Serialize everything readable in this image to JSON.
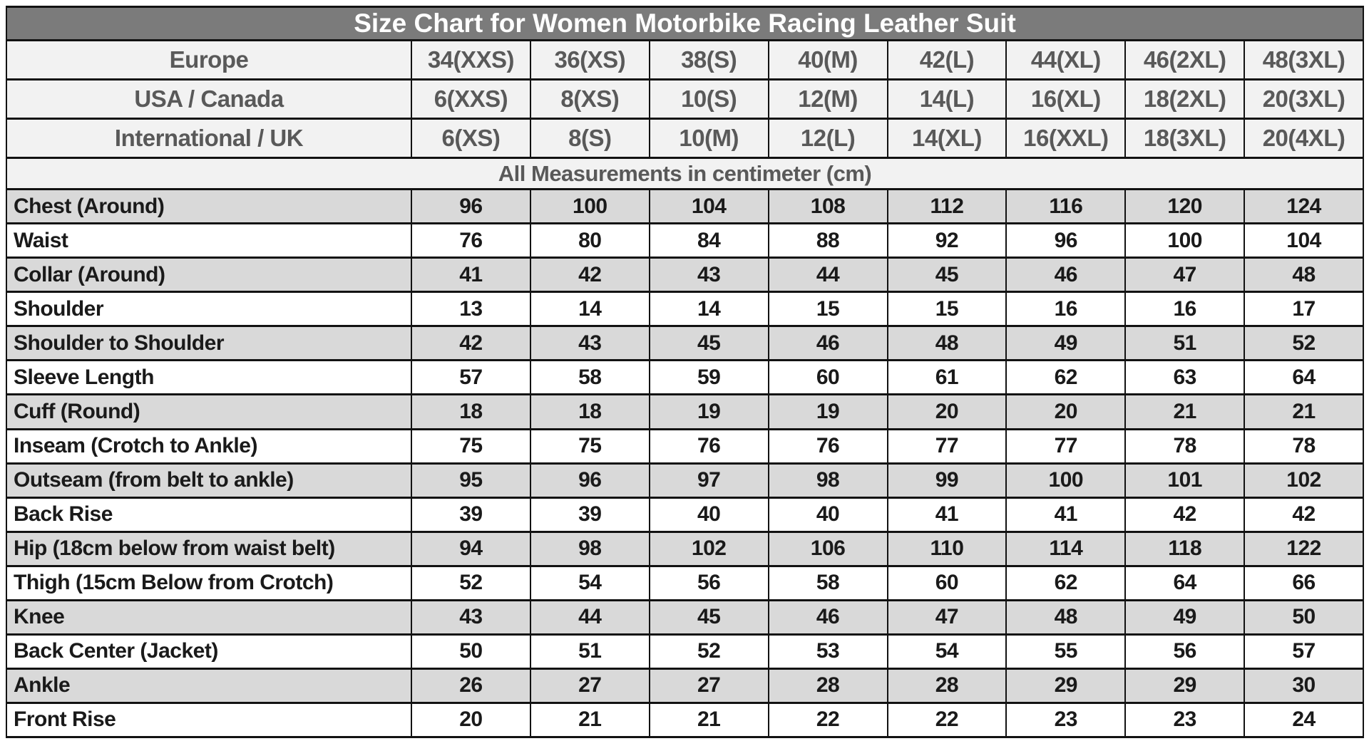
{
  "colors": {
    "title_bar_bg": "#7b7b7b",
    "title_text": "#ffffff",
    "header_bg": "#f2f2f2",
    "header_text": "#595959",
    "row_shade_bg": "#d9d9d9",
    "row_plain_bg": "#ffffff",
    "body_text": "#1a1a1a",
    "border": "#121212"
  },
  "chart_data": {
    "type": "table",
    "title": "Size Chart for Women Motorbike Racing Leather Suit",
    "units_note": "All Measurements in centimeter (cm)",
    "size_conversion_rows": [
      {
        "label": "Europe",
        "values": [
          "34(XXS)",
          "36(XS)",
          "38(S)",
          "40(M)",
          "42(L)",
          "44(XL)",
          "46(2XL)",
          "48(3XL)"
        ]
      },
      {
        "label": "USA / Canada",
        "values": [
          "6(XXS)",
          "8(XS)",
          "10(S)",
          "12(M)",
          "14(L)",
          "16(XL)",
          "18(2XL)",
          "20(3XL)"
        ]
      },
      {
        "label": "International / UK",
        "values": [
          "6(XS)",
          "8(S)",
          "10(M)",
          "12(L)",
          "14(XL)",
          "16(XXL)",
          "18(3XL)",
          "20(4XL)"
        ]
      }
    ],
    "measurements": [
      {
        "label": "Chest (Around)",
        "values": [
          96,
          100,
          104,
          108,
          112,
          116,
          120,
          124
        ]
      },
      {
        "label": "Waist",
        "values": [
          76,
          80,
          84,
          88,
          92,
          96,
          100,
          104
        ]
      },
      {
        "label": "Collar (Around)",
        "values": [
          41,
          42,
          43,
          44,
          45,
          46,
          47,
          48
        ]
      },
      {
        "label": "Shoulder",
        "values": [
          13,
          14,
          14,
          15,
          15,
          16,
          16,
          17
        ]
      },
      {
        "label": "Shoulder to Shoulder",
        "values": [
          42,
          43,
          45,
          46,
          48,
          49,
          51,
          52
        ]
      },
      {
        "label": "Sleeve Length",
        "values": [
          57,
          58,
          59,
          60,
          61,
          62,
          63,
          64
        ]
      },
      {
        "label": "Cuff (Round)",
        "values": [
          18,
          18,
          19,
          19,
          20,
          20,
          21,
          21
        ]
      },
      {
        "label": "Inseam (Crotch to Ankle)",
        "values": [
          75,
          75,
          76,
          76,
          77,
          77,
          78,
          78
        ]
      },
      {
        "label": "Outseam (from belt to ankle)",
        "values": [
          95,
          96,
          97,
          98,
          99,
          100,
          101,
          102
        ]
      },
      {
        "label": "Back Rise",
        "values": [
          39,
          39,
          40,
          40,
          41,
          41,
          42,
          42
        ]
      },
      {
        "label": "Hip (18cm below from waist belt)",
        "values": [
          94,
          98,
          102,
          106,
          110,
          114,
          118,
          122
        ]
      },
      {
        "label": "Thigh (15cm Below from Crotch)",
        "values": [
          52,
          54,
          56,
          58,
          60,
          62,
          64,
          66
        ]
      },
      {
        "label": "Knee",
        "values": [
          43,
          44,
          45,
          46,
          47,
          48,
          49,
          50
        ]
      },
      {
        "label": "Back Center (Jacket)",
        "values": [
          50,
          51,
          52,
          53,
          54,
          55,
          56,
          57
        ]
      },
      {
        "label": "Ankle",
        "values": [
          26,
          27,
          27,
          28,
          28,
          29,
          29,
          30
        ]
      },
      {
        "label": "Front Rise",
        "values": [
          20,
          21,
          21,
          22,
          22,
          23,
          23,
          24
        ]
      }
    ]
  }
}
